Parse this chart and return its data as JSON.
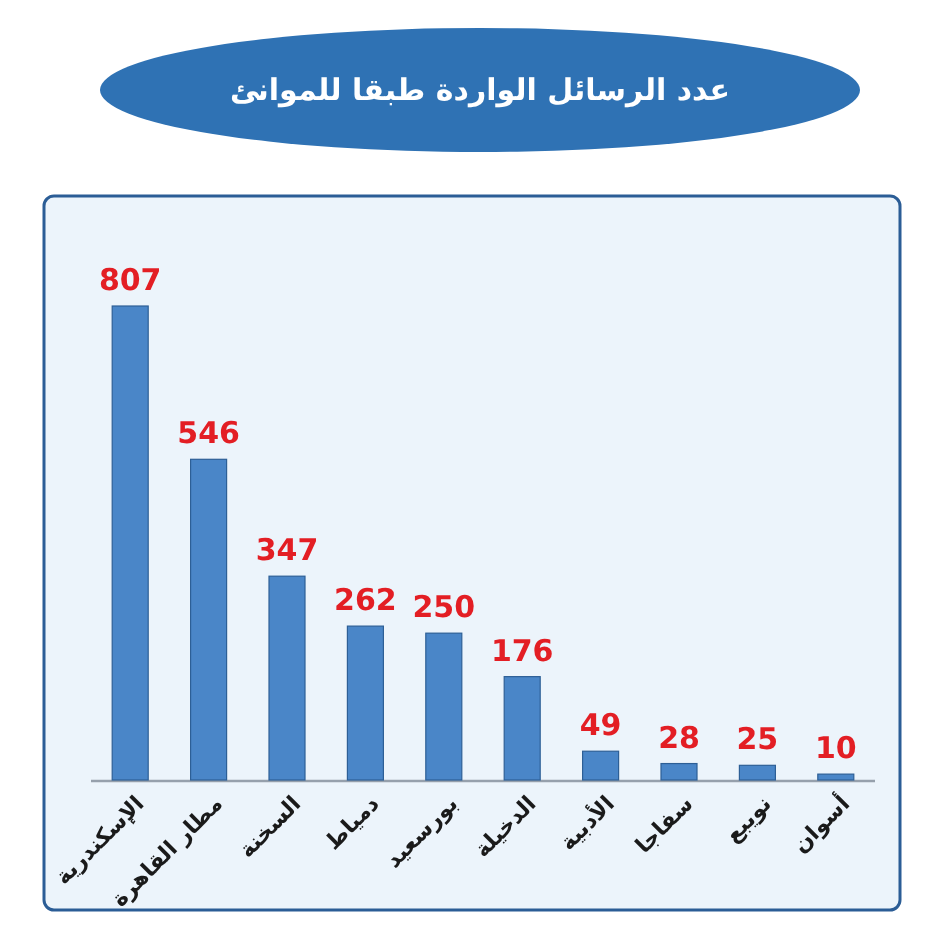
{
  "chart_data": {
    "type": "bar",
    "title": "عدد الرسائل الواردة طبقا للموانئ",
    "categories": [
      "الإسكندرية",
      "مطار القاهرة",
      "السخنة",
      "دمياط",
      "بورسعيد",
      "الدخيلة",
      "الأدبية",
      "سفاجا",
      "نويبع",
      "أسوان"
    ],
    "values": [
      807,
      546,
      347,
      262,
      250,
      176,
      49,
      28,
      25,
      10
    ],
    "color": "#4a86c8",
    "data_labels": true
  }
}
